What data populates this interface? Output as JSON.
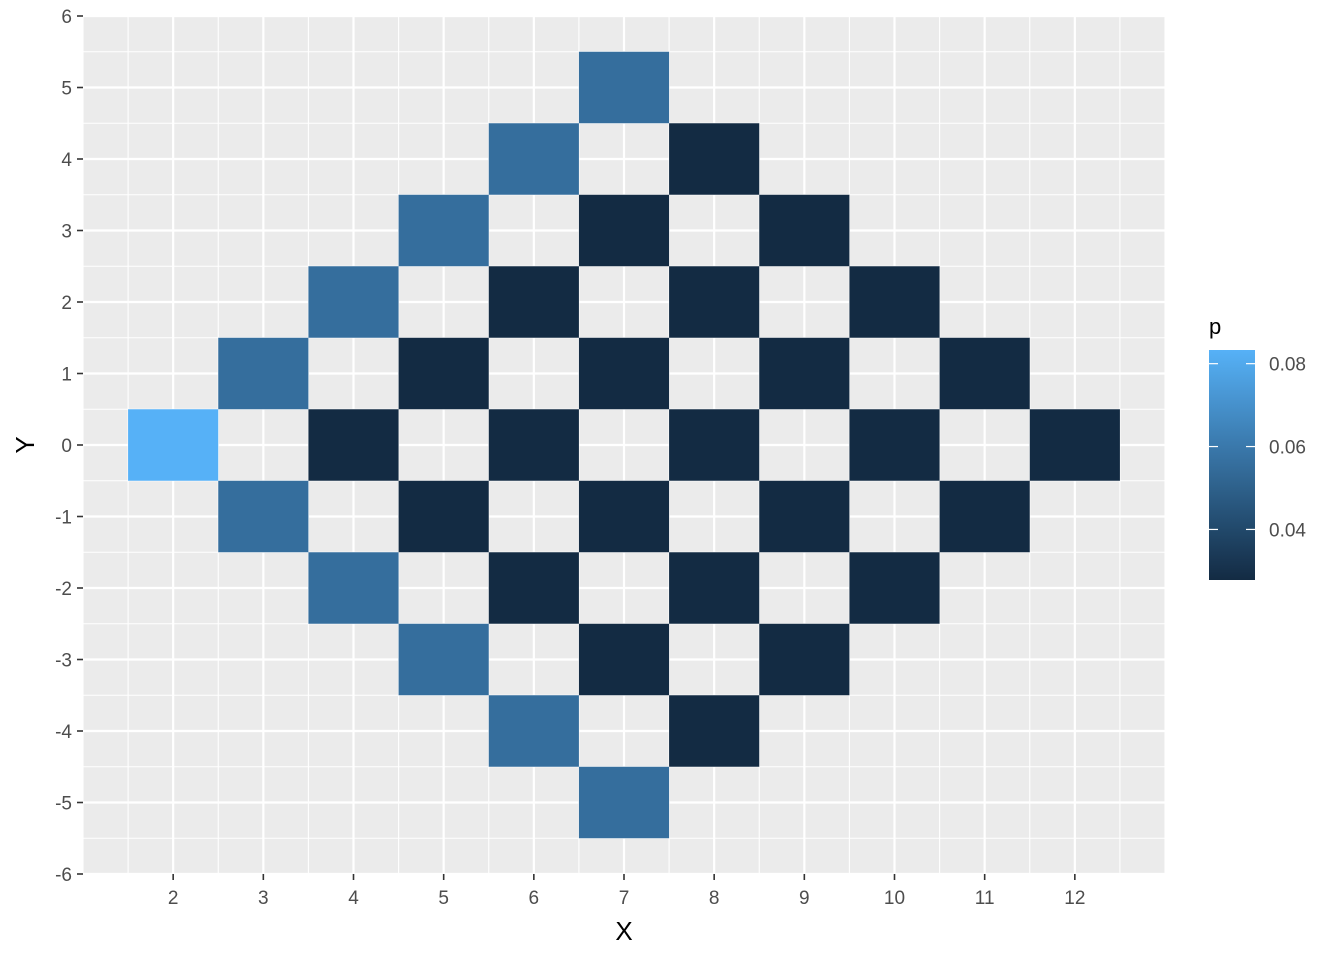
{
  "chart_data": {
    "type": "heatmap",
    "xlabel": "X",
    "ylabel": "Y",
    "xlim": [
      1,
      13
    ],
    "ylim": [
      -6,
      6
    ],
    "x_ticks": [
      "2",
      "3",
      "4",
      "5",
      "6",
      "7",
      "8",
      "9",
      "10",
      "11",
      "12"
    ],
    "y_ticks": [
      "-6",
      "-5",
      "-4",
      "-3",
      "-2",
      "-1",
      "0",
      "1",
      "2",
      "3",
      "4",
      "5",
      "6"
    ],
    "grid": true,
    "legend": {
      "title": "p",
      "placement": "right",
      "labels": [
        "0.04",
        "0.06",
        "0.08"
      ],
      "range": [
        0.0278,
        0.0833
      ],
      "low_color": "#132B43",
      "high_color": "#56B1F7"
    },
    "cells": [
      {
        "x": 2,
        "y": 0,
        "p": 0.0833
      },
      {
        "x": 3,
        "y": 1,
        "p": 0.0556
      },
      {
        "x": 3,
        "y": -1,
        "p": 0.0556
      },
      {
        "x": 4,
        "y": 2,
        "p": 0.0556
      },
      {
        "x": 4,
        "y": 0,
        "p": 0.0278
      },
      {
        "x": 4,
        "y": -2,
        "p": 0.0556
      },
      {
        "x": 5,
        "y": 3,
        "p": 0.0556
      },
      {
        "x": 5,
        "y": 1,
        "p": 0.0278
      },
      {
        "x": 5,
        "y": -1,
        "p": 0.0278
      },
      {
        "x": 5,
        "y": -3,
        "p": 0.0556
      },
      {
        "x": 6,
        "y": 4,
        "p": 0.0556
      },
      {
        "x": 6,
        "y": 2,
        "p": 0.0278
      },
      {
        "x": 6,
        "y": 0,
        "p": 0.0278
      },
      {
        "x": 6,
        "y": -2,
        "p": 0.0278
      },
      {
        "x": 6,
        "y": -4,
        "p": 0.0556
      },
      {
        "x": 7,
        "y": 5,
        "p": 0.0556
      },
      {
        "x": 7,
        "y": 3,
        "p": 0.0278
      },
      {
        "x": 7,
        "y": 1,
        "p": 0.0278
      },
      {
        "x": 7,
        "y": -1,
        "p": 0.0278
      },
      {
        "x": 7,
        "y": -3,
        "p": 0.0278
      },
      {
        "x": 7,
        "y": -5,
        "p": 0.0556
      },
      {
        "x": 8,
        "y": 4,
        "p": 0.0278
      },
      {
        "x": 8,
        "y": 2,
        "p": 0.0278
      },
      {
        "x": 8,
        "y": 0,
        "p": 0.0278
      },
      {
        "x": 8,
        "y": -2,
        "p": 0.0278
      },
      {
        "x": 8,
        "y": -4,
        "p": 0.0278
      },
      {
        "x": 9,
        "y": 3,
        "p": 0.0278
      },
      {
        "x": 9,
        "y": 1,
        "p": 0.0278
      },
      {
        "x": 9,
        "y": -1,
        "p": 0.0278
      },
      {
        "x": 9,
        "y": -3,
        "p": 0.0278
      },
      {
        "x": 10,
        "y": 2,
        "p": 0.0278
      },
      {
        "x": 10,
        "y": 0,
        "p": 0.0278
      },
      {
        "x": 10,
        "y": -2,
        "p": 0.0278
      },
      {
        "x": 11,
        "y": 1,
        "p": 0.0278
      },
      {
        "x": 11,
        "y": -1,
        "p": 0.0278
      },
      {
        "x": 12,
        "y": 0,
        "p": 0.0278
      }
    ]
  }
}
